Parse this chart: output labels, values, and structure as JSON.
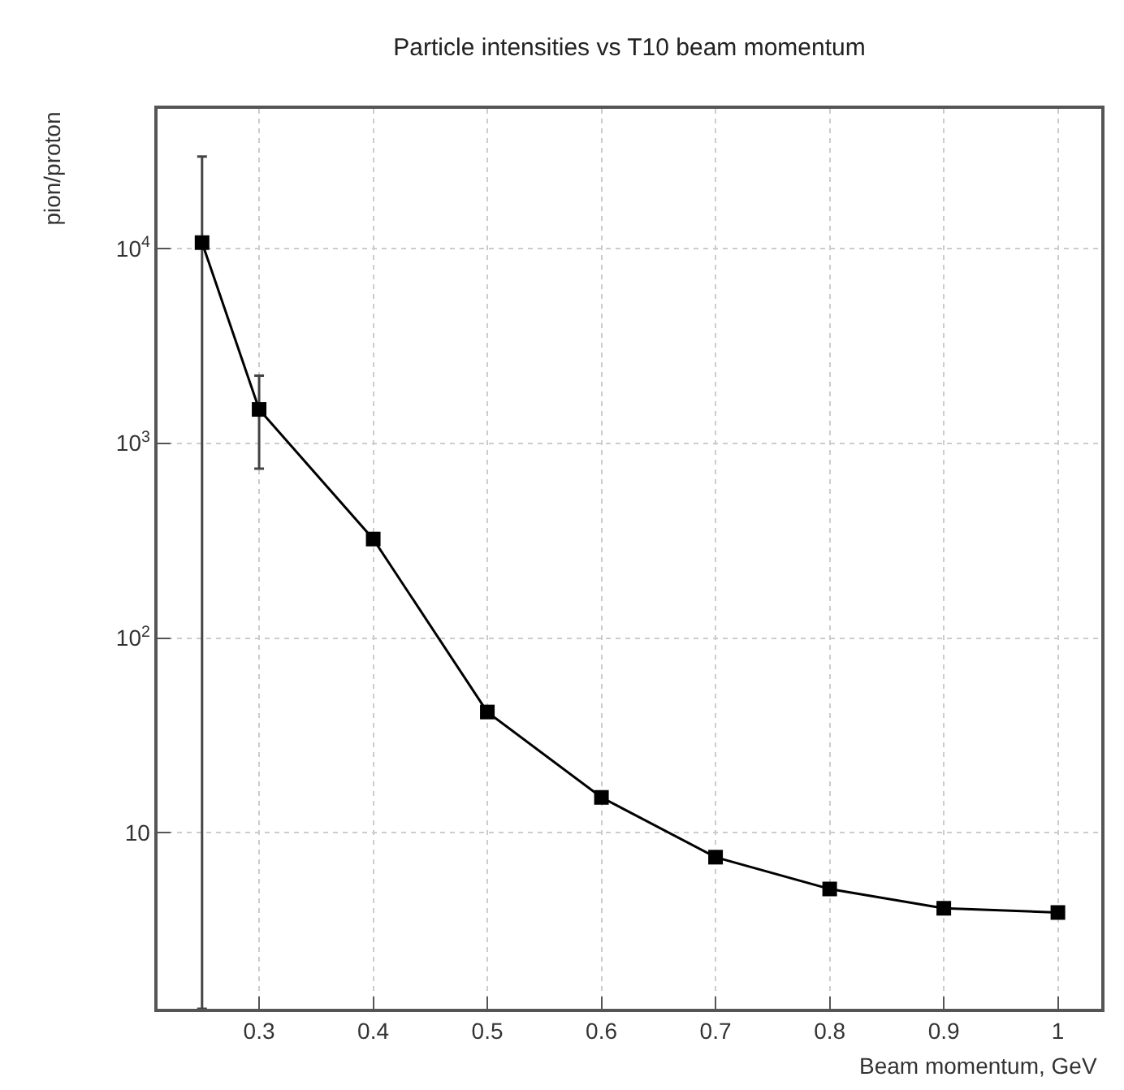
{
  "chart_data": {
    "type": "line",
    "title": "Particle intensities vs T10 beam momentum",
    "xlabel": "Beam momentum, GeV",
    "ylabel": "pion/proton",
    "x": [
      0.25,
      0.3,
      0.4,
      0.5,
      0.6,
      0.7,
      0.8,
      0.9,
      1
    ],
    "series": [
      {
        "color": "#000000",
        "values": [
          10700,
          1490,
          322,
          41.7,
          15.2,
          7.5,
          5.15,
          4.1,
          3.9
        ],
        "errors": [
          [
            1.25,
            29600
          ],
          [
            740,
            2220
          ],
          null,
          null,
          null,
          null,
          null,
          null,
          null
        ]
      }
    ],
    "xlim": [
      0.211,
      1.038
    ],
    "xticks": [
      0.3,
      0.4,
      0.5,
      0.6,
      0.7,
      0.8,
      0.9,
      1
    ],
    "ylim": [
      1.25,
      52000
    ],
    "yticks": [
      10,
      {
        "value": 100,
        "label": "10$^{2}$"
      },
      {
        "value": 1000,
        "label": "10$^{3}$"
      },
      {
        "value": 10000,
        "label": "10$^{4}$"
      }
    ],
    "log": "y",
    "grid": true,
    "marker": "square",
    "line_style": "solid"
  }
}
